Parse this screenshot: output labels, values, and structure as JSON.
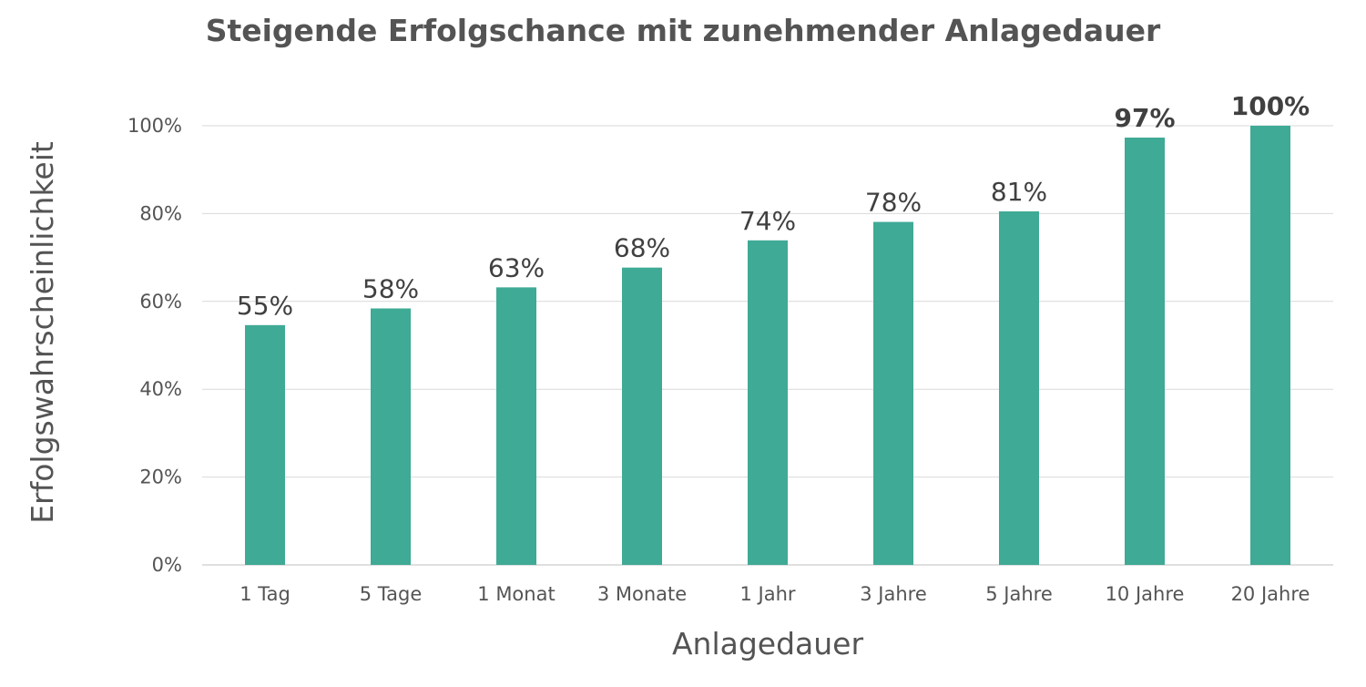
{
  "chart_data": {
    "type": "bar",
    "title": "Steigende Erfolgschance mit zunehmender Anlagedauer",
    "xlabel": "Anlagedauer",
    "ylabel": "Erfolgswahrscheinlichkeit",
    "categories": [
      "1 Tag",
      "5 Tage",
      "1 Monat",
      "3 Monate",
      "1 Jahr",
      "3 Jahre",
      "5 Jahre",
      "10 Jahre",
      "20 Jahre"
    ],
    "values": [
      54.6,
      58.4,
      63.2,
      67.7,
      73.9,
      78.1,
      80.5,
      97.3,
      100
    ],
    "data_labels": [
      "55%",
      "58%",
      "63%",
      "68%",
      "74%",
      "78%",
      "81%",
      "97%",
      "100%"
    ],
    "bold_labels": [
      "97%",
      "100%"
    ],
    "ylim": [
      0,
      100
    ],
    "yticks": [
      0,
      20,
      40,
      60,
      80,
      100
    ],
    "ytick_labels": [
      "0%",
      "20%",
      "40%",
      "60%",
      "80%",
      "100%"
    ],
    "grid": true,
    "legend": "none",
    "bar_color": "#3faa95"
  }
}
